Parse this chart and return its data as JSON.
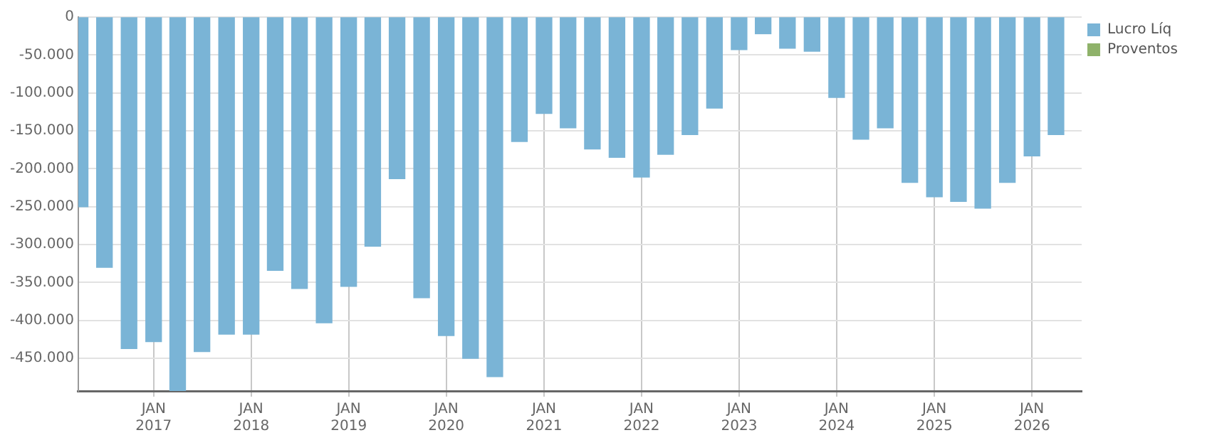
{
  "chart_data": {
    "type": "bar",
    "x": [
      "2016-04",
      "2016-07",
      "2016-10",
      "2017-01",
      "2017-04",
      "2017-07",
      "2017-10",
      "2018-01",
      "2018-04",
      "2018-07",
      "2018-10",
      "2019-01",
      "2019-04",
      "2019-07",
      "2019-10",
      "2020-01",
      "2020-04",
      "2020-07",
      "2020-10",
      "2021-01",
      "2021-04",
      "2021-07",
      "2021-10",
      "2022-01",
      "2022-04",
      "2022-07",
      "2022-10",
      "2023-01",
      "2023-04",
      "2023-07",
      "2023-10",
      "2024-01",
      "2024-04",
      "2024-07",
      "2024-10",
      "2025-01",
      "2025-04",
      "2025-07",
      "2025-10",
      "2026-01",
      "2026-04"
    ],
    "series": [
      {
        "name": "Lucro Líq",
        "color": "#7ab4d6",
        "values": [
          -250000,
          -330000,
          -437000,
          -428000,
          -493000,
          -441000,
          -418000,
          -418000,
          -334000,
          -358000,
          -403000,
          -355000,
          -302000,
          -213000,
          -370000,
          -420000,
          -450000,
          -474000,
          -164000,
          -127000,
          -146000,
          -174000,
          -185000,
          -211000,
          -181000,
          -155000,
          -120000,
          -43000,
          -22000,
          -41000,
          -45000,
          -106000,
          -161000,
          -146000,
          -218000,
          -237000,
          -243000,
          -252000,
          -218000,
          -183000,
          -155000
        ]
      },
      {
        "name": "Proventos",
        "color": "#8fb26a",
        "values": [
          null,
          null,
          null,
          null,
          null,
          null,
          null,
          null,
          null,
          null,
          null,
          null,
          null,
          null,
          null,
          null,
          null,
          null,
          null,
          null,
          null,
          null,
          null,
          null,
          null,
          null,
          null,
          null,
          null,
          null,
          null,
          null,
          null,
          null,
          null,
          null,
          null,
          null,
          null,
          null,
          null
        ]
      }
    ],
    "xlim": [
      "2016-03-25",
      "2026-07-06"
    ],
    "xticks": [
      {
        "value": "2017-01",
        "label": "JAN\n2017"
      },
      {
        "value": "2018-01",
        "label": "JAN\n2018"
      },
      {
        "value": "2019-01",
        "label": "JAN\n2019"
      },
      {
        "value": "2020-01",
        "label": "JAN\n2020"
      },
      {
        "value": "2021-01",
        "label": "JAN\n2021"
      },
      {
        "value": "2022-01",
        "label": "JAN\n2022"
      },
      {
        "value": "2023-01",
        "label": "JAN\n2023"
      },
      {
        "value": "2024-01",
        "label": "JAN\n2024"
      },
      {
        "value": "2025-01",
        "label": "JAN\n2025"
      },
      {
        "value": "2026-01",
        "label": "JAN\n2026"
      }
    ],
    "ylim": [
      -493000,
      0
    ],
    "yticks": [
      0,
      {
        "value": -50000,
        "label": "-50.000"
      },
      {
        "value": -100000,
        "label": "-100.000"
      },
      {
        "value": -150000,
        "label": "-150.000"
      },
      {
        "value": -200000,
        "label": "-200.000"
      },
      {
        "value": -250000,
        "label": "-250.000"
      },
      {
        "value": -300000,
        "label": "-300.000"
      },
      {
        "value": -350000,
        "label": "-350.000"
      },
      {
        "value": -400000,
        "label": "-400.000"
      },
      {
        "value": -450000,
        "label": "-450.000"
      }
    ],
    "grid": true,
    "legend": "top right"
  }
}
